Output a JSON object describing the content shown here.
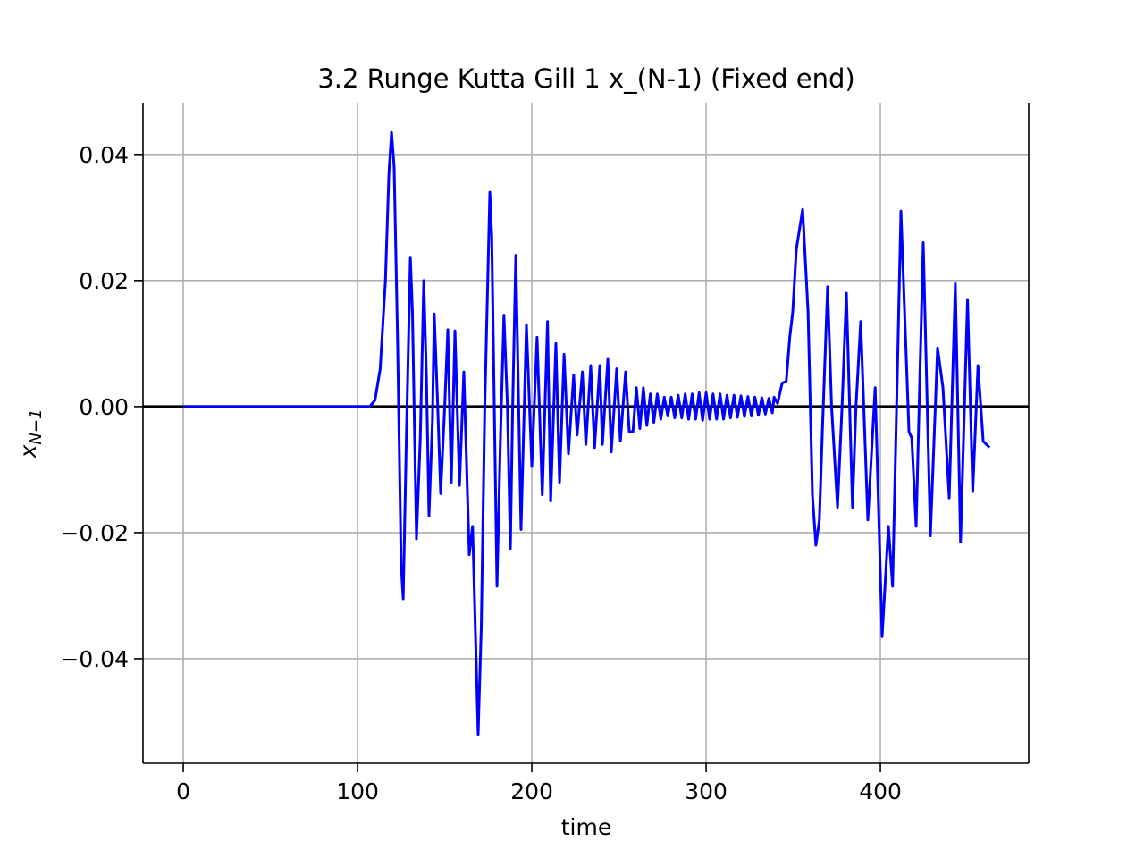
{
  "chart_data": {
    "type": "line",
    "title": "3.2 Runge Kutta Gill 1 x_(N-1) (Fixed end)",
    "xlabel": "time",
    "ylabel": "x",
    "ylabel_subscript": "N−1",
    "color": "blue",
    "grid": true,
    "hline": 0,
    "xlim": [
      -23.1,
      485.1
    ],
    "ylim": [
      -0.0566,
      0.0482
    ],
    "xticks": [
      0,
      100,
      200,
      300,
      400
    ],
    "yticks": [
      {
        "value": -0.04,
        "label": "−0.04"
      },
      {
        "value": -0.02,
        "label": "−0.02"
      },
      {
        "value": 0,
        "label": "0.00"
      },
      {
        "value": 0.02,
        "label": "0.02"
      },
      {
        "value": 0.04,
        "label": "0.04"
      }
    ],
    "x": [
      0,
      100,
      107,
      110,
      113,
      116,
      118,
      119.5,
      121,
      123,
      125,
      126.2,
      128,
      130.3,
      131.5,
      133.8,
      136,
      138,
      139.5,
      141,
      143,
      144,
      146,
      147.7,
      150,
      151.8,
      153.8,
      155.9,
      158.5,
      161,
      164.1,
      166,
      169.2,
      171,
      173,
      175.9,
      177,
      180,
      182,
      184,
      186,
      187.7,
      189,
      190.8,
      193.8,
      196.9,
      200,
      203,
      206,
      209,
      210.8,
      213.8,
      215.9,
      218.5,
      221,
      224,
      226,
      229,
      231,
      233.8,
      236,
      239,
      240.5,
      243.6,
      245.6,
      248.7,
      250.8,
      253.8,
      255.9,
      258,
      260,
      262,
      264,
      266,
      268,
      270,
      272,
      274,
      276,
      278,
      280,
      282,
      284,
      286,
      288,
      290,
      292,
      294,
      296,
      298,
      300,
      302,
      304,
      306,
      308,
      310,
      312,
      314,
      316,
      318,
      320,
      322,
      324,
      326,
      328,
      330,
      332,
      334,
      336,
      338,
      339,
      341,
      343.6,
      346,
      348,
      349.7,
      351.8,
      355.4,
      358.5,
      361,
      363,
      365,
      366.7,
      369.7,
      372,
      375.4,
      378,
      380.5,
      384,
      386,
      388.7,
      392.8,
      397,
      401,
      404.6,
      407,
      411.8,
      416.4,
      418,
      420.5,
      424.6,
      428.7,
      432.8,
      435.9,
      439.5,
      443,
      446,
      450,
      453,
      456,
      459,
      462.6
    ],
    "values": [
      0,
      0,
      0,
      0.001,
      0.006,
      0.02,
      0.037,
      0.0435,
      0.038,
      0.01,
      -0.025,
      -0.0305,
      -0.005,
      0.0237,
      0.015,
      -0.021,
      -0.005,
      0.02,
      0.005,
      -0.0173,
      -0.002,
      0.0147,
      0.0,
      -0.0138,
      0.0,
      0.0122,
      -0.012,
      0.012,
      -0.0125,
      0.0055,
      -0.0235,
      -0.019,
      -0.052,
      -0.035,
      0.0,
      0.034,
      0.027,
      -0.0285,
      -0.005,
      0.0145,
      0.0,
      -0.0225,
      0.0,
      0.024,
      -0.0195,
      0.013,
      -0.0095,
      0.011,
      -0.014,
      0.0135,
      -0.015,
      0.01,
      -0.012,
      0.0083,
      -0.0075,
      0.005,
      -0.0045,
      0.0055,
      -0.006,
      0.0065,
      -0.0065,
      0.0065,
      -0.006,
      0.0075,
      -0.0072,
      0.006,
      -0.0055,
      0.0055,
      -0.004,
      -0.004,
      0.003,
      -0.0035,
      0.003,
      -0.003,
      0.002,
      -0.0025,
      0.002,
      -0.002,
      0.0015,
      -0.0015,
      0.0015,
      -0.0018,
      0.0018,
      -0.0018,
      0.002,
      -0.002,
      0.002,
      -0.002,
      0.0022,
      -0.0022,
      0.0022,
      -0.002,
      0.002,
      -0.002,
      0.002,
      -0.002,
      0.0018,
      -0.0018,
      0.0018,
      -0.0017,
      0.0017,
      -0.0016,
      0.0016,
      -0.0015,
      0.0015,
      -0.0014,
      0.0014,
      -0.0012,
      0.0013,
      -0.001,
      0.0015,
      0.0005,
      0.0037,
      0.004,
      0.011,
      0.015,
      0.025,
      0.0313,
      0.015,
      -0.014,
      -0.022,
      -0.018,
      -0.004,
      0.019,
      0.0,
      -0.016,
      0.0,
      0.018,
      -0.016,
      0.0,
      0.0135,
      -0.018,
      0.003,
      -0.0365,
      -0.019,
      -0.0285,
      0.031,
      -0.004,
      -0.005,
      -0.019,
      0.026,
      -0.0205,
      0.0093,
      0.003,
      -0.0145,
      0.0195,
      -0.0215,
      0.017,
      -0.0135,
      0.0065,
      -0.0055,
      -0.0065
    ]
  }
}
